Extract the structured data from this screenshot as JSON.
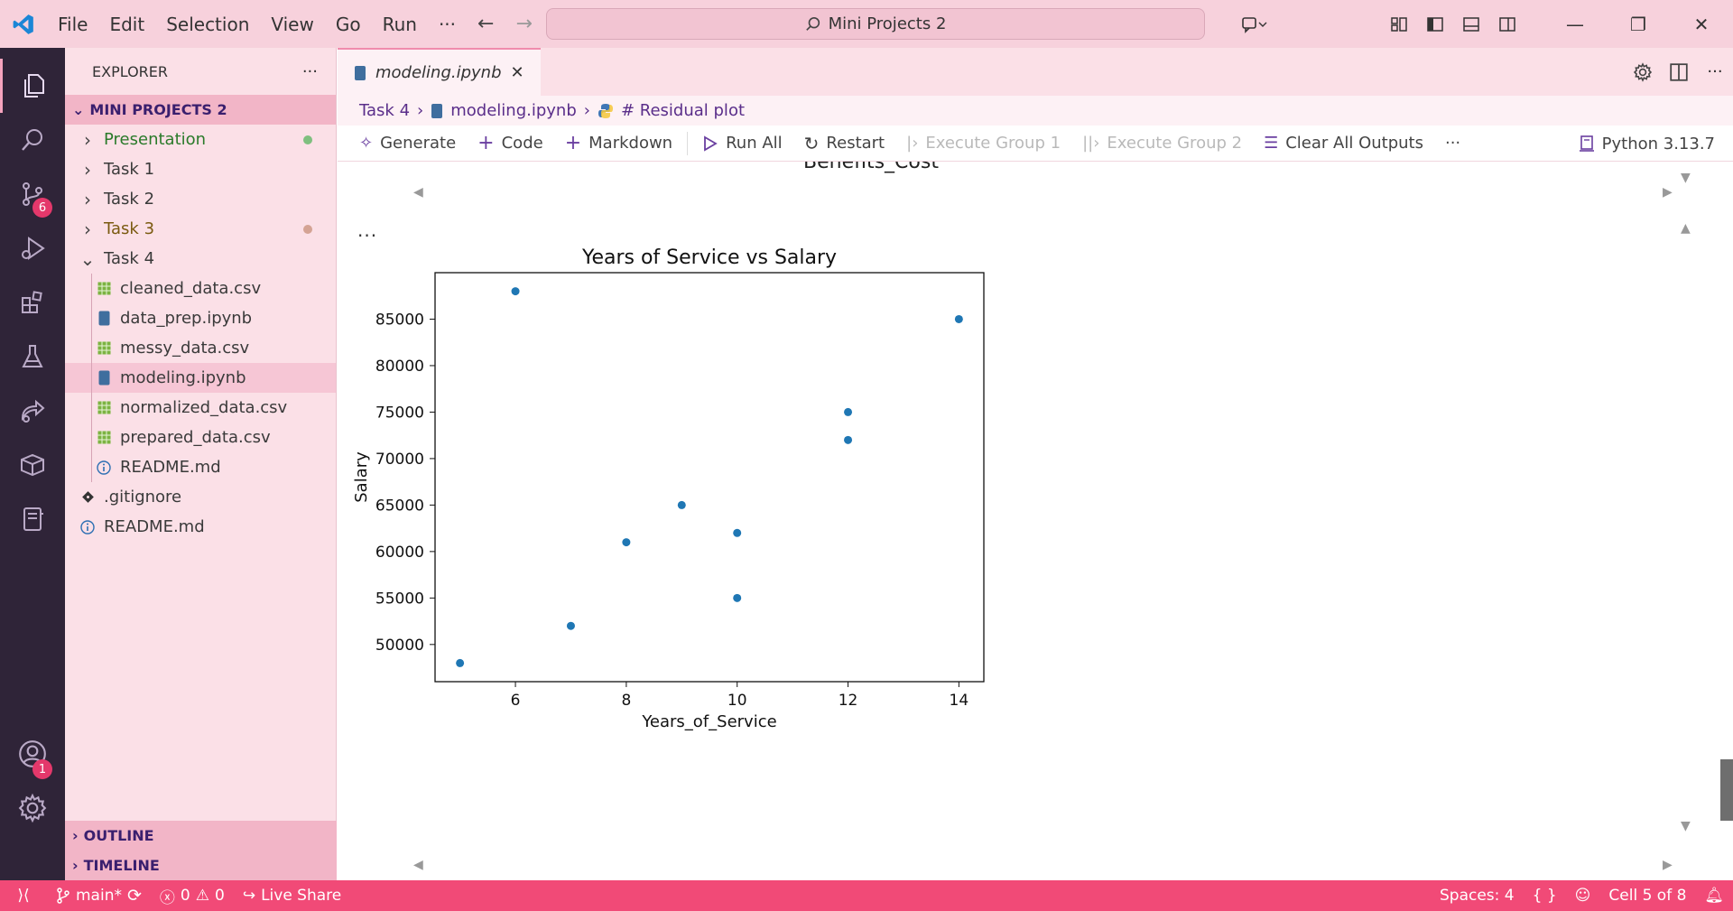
{
  "window": {
    "menu": [
      "File",
      "Edit",
      "Selection",
      "View",
      "Go",
      "Run"
    ],
    "more": "···",
    "search": "Mini Projects 2",
    "controls": {
      "minimize": "—",
      "maximize": "❐",
      "close": "✕"
    }
  },
  "activity_bar": {
    "items": [
      "explorer-icon",
      "search-icon",
      "source-control-icon",
      "run-debug-icon",
      "extensions-icon",
      "testing-icon",
      "live-share-icon",
      "containers-icon",
      "notebook-icon"
    ],
    "source_control_badge": "6",
    "accounts_badge": "1"
  },
  "sidebar": {
    "title": "EXPLORER",
    "more": "···",
    "project": "MINI PROJECTS 2",
    "tree": [
      {
        "label": "Presentation",
        "type": "folder",
        "depth": 0,
        "expanded": false,
        "color": "#2a7a2a",
        "dot": "#7fbf7f"
      },
      {
        "label": "Task 1",
        "type": "folder",
        "depth": 0,
        "expanded": false
      },
      {
        "label": "Task 2",
        "type": "folder",
        "depth": 0,
        "expanded": false
      },
      {
        "label": "Task 3",
        "type": "folder",
        "depth": 0,
        "expanded": false,
        "color": "#7a5a10",
        "dot": "#d4a394"
      },
      {
        "label": "Task 4",
        "type": "folder",
        "depth": 0,
        "expanded": true
      },
      {
        "label": "cleaned_data.csv",
        "type": "csv",
        "depth": 1
      },
      {
        "label": "data_prep.ipynb",
        "type": "ipynb",
        "depth": 1
      },
      {
        "label": "messy_data.csv",
        "type": "csv",
        "depth": 1
      },
      {
        "label": "modeling.ipynb",
        "type": "ipynb",
        "depth": 1,
        "selected": true
      },
      {
        "label": "normalized_data.csv",
        "type": "csv",
        "depth": 1
      },
      {
        "label": "prepared_data.csv",
        "type": "csv",
        "depth": 1
      },
      {
        "label": "README.md",
        "type": "info",
        "depth": 1
      },
      {
        "label": ".gitignore",
        "type": "git",
        "depth": 0
      },
      {
        "label": "README.md",
        "type": "info",
        "depth": 0
      }
    ],
    "outline": "OUTLINE",
    "timeline": "TIMELINE"
  },
  "editor": {
    "tab": "modeling.ipynb",
    "breadcrumb": {
      "folder": "Task 4",
      "file": "modeling.ipynb",
      "symbol": "# Residual plot"
    },
    "toolbar": {
      "generate": "Generate",
      "code": "Code",
      "markdown": "Markdown",
      "run_all": "Run All",
      "restart": "Restart",
      "execute_group_1": "Execute Group 1",
      "execute_group_2": "Execute Group 2",
      "clear_outputs": "Clear All Outputs",
      "more": "···",
      "kernel": "Python 3.13.7"
    },
    "cut_label": "Benefits_Cost",
    "cell_more": "···"
  },
  "chart_data": {
    "type": "scatter",
    "title": "Years of Service vs Salary",
    "xlabel": "Years_of_Service",
    "ylabel": "Salary",
    "xlim": [
      4.55,
      14.45
    ],
    "ylim": [
      46000,
      90000
    ],
    "xticks": [
      6,
      8,
      10,
      12,
      14
    ],
    "yticks": [
      50000,
      55000,
      60000,
      65000,
      70000,
      75000,
      80000,
      85000
    ],
    "color": "#1f77b4",
    "points": [
      {
        "x": 5,
        "y": 48000
      },
      {
        "x": 6,
        "y": 88000
      },
      {
        "x": 7,
        "y": 52000
      },
      {
        "x": 8,
        "y": 61000
      },
      {
        "x": 9,
        "y": 65000
      },
      {
        "x": 10,
        "y": 62000
      },
      {
        "x": 10,
        "y": 55000
      },
      {
        "x": 12,
        "y": 75000
      },
      {
        "x": 12,
        "y": 72000
      },
      {
        "x": 14,
        "y": 85000
      }
    ]
  },
  "status_bar": {
    "branch": "main*",
    "errors": "0",
    "warnings": "0",
    "live_share": "Live Share",
    "spaces": "Spaces: 4",
    "braces": "{ }",
    "cell": "Cell 5 of 8"
  }
}
